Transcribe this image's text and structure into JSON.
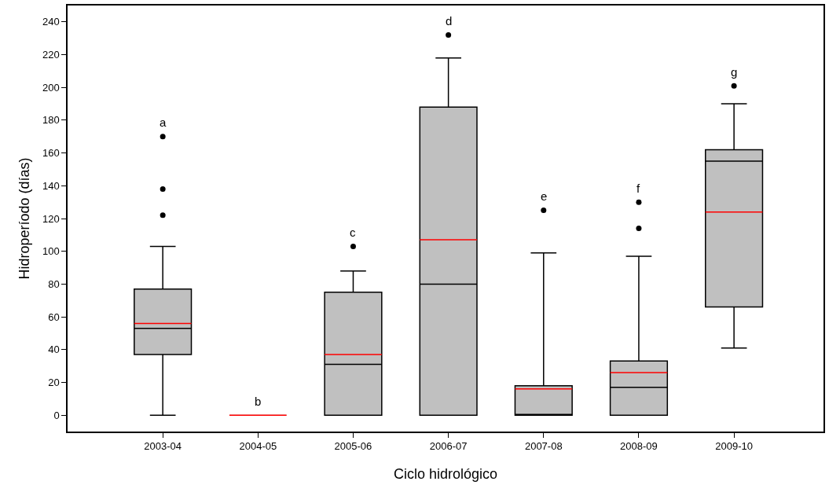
{
  "chart_data": {
    "type": "box",
    "xlabel": "Ciclo hidrológico",
    "ylabel": "Hidroperíodo (días)",
    "categories": [
      "2003-04",
      "2004-05",
      "2005-06",
      "2006-07",
      "2007-08",
      "2008-09",
      "2009-10"
    ],
    "color": "#c0c0c0",
    "boxes": [
      {
        "low": 0,
        "q1": 37,
        "median": 53,
        "q3": 77,
        "high": 103,
        "mean": 56,
        "outliers": [
          122,
          138,
          170
        ]
      },
      {
        "low": 0,
        "q1": 0,
        "median": 0,
        "q3": 0,
        "high": 0,
        "mean": 0
      },
      {
        "low": 0,
        "q1": 0,
        "median": 31,
        "q3": 75,
        "high": 88,
        "mean": 37,
        "outliers": [
          103
        ]
      },
      {
        "low": 0,
        "q1": 0,
        "median": 80,
        "q3": 188,
        "high": 218,
        "mean": 107,
        "outliers": [
          232
        ]
      },
      {
        "low": 0,
        "q1": 0,
        "median": 0,
        "q3": 18,
        "high": 99,
        "mean": 16,
        "outliers": [
          125
        ]
      },
      {
        "low": 0,
        "q1": 0,
        "median": 17,
        "q3": 33,
        "high": 97,
        "mean": 26,
        "outliers": [
          114,
          130
        ]
      },
      {
        "low": 41,
        "q1": 66,
        "median": 155,
        "q3": 162,
        "high": 190,
        "mean": 124,
        "outliers": [
          201
        ]
      }
    ],
    "ylim": [
      -10,
      250
    ],
    "yticks": [
      0,
      20,
      40,
      60,
      80,
      100,
      120,
      140,
      160,
      180,
      200,
      220,
      240
    ],
    "annotations": [
      "a",
      "b",
      "c",
      "d",
      "e",
      "f",
      "g"
    ]
  }
}
